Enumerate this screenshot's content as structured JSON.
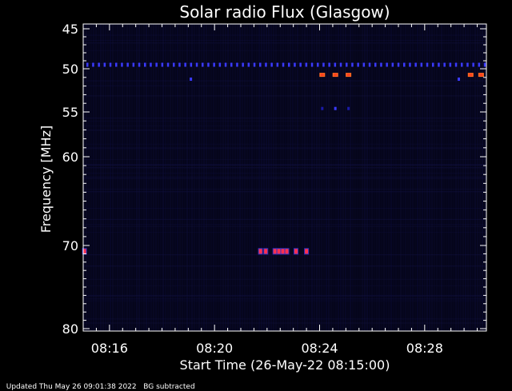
{
  "chart_data": {
    "type": "heatmap",
    "title": "Solar radio Flux (Glasgow)",
    "ylabel": "Frequency [MHz]",
    "xlabel": "Start Time (26-May-22 08:15:00)",
    "xlim_minutes": [
      15.0,
      30.35
    ],
    "ylim": [
      80,
      45
    ],
    "y_ticks": [
      45,
      50,
      55,
      60,
      70,
      80
    ],
    "x_ticks": [
      {
        "minute": 16,
        "label": "08:16"
      },
      {
        "minute": 20,
        "label": "08:20"
      },
      {
        "minute": 24,
        "label": "08:24"
      },
      {
        "minute": 28,
        "label": "08:28"
      }
    ],
    "colors": {
      "background": "#000000",
      "plot_bg": "#05051a",
      "axis": "#ffffff",
      "weak": "#1a1aa8",
      "band": "#3a3aff",
      "bright": "#ff3050",
      "hot": "#ff6a20"
    },
    "bursts": [
      {
        "minute": 15.05,
        "freq": 70.7,
        "level": "bright"
      },
      {
        "minute": 21.75,
        "freq": 70.7,
        "level": "bright"
      },
      {
        "minute": 21.95,
        "freq": 70.7,
        "level": "bright"
      },
      {
        "minute": 22.3,
        "freq": 70.7,
        "level": "bright"
      },
      {
        "minute": 22.45,
        "freq": 70.7,
        "level": "bright"
      },
      {
        "minute": 22.6,
        "freq": 70.7,
        "level": "bright"
      },
      {
        "minute": 22.75,
        "freq": 70.7,
        "level": "bright"
      },
      {
        "minute": 23.1,
        "freq": 70.7,
        "level": "bright"
      },
      {
        "minute": 23.5,
        "freq": 70.7,
        "level": "bright"
      },
      {
        "minute": 24.1,
        "freq": 50.7,
        "level": "hot"
      },
      {
        "minute": 24.6,
        "freq": 50.7,
        "level": "hot"
      },
      {
        "minute": 25.1,
        "freq": 50.7,
        "level": "hot"
      },
      {
        "minute": 29.75,
        "freq": 50.7,
        "level": "hot"
      },
      {
        "minute": 30.15,
        "freq": 50.7,
        "level": "hot"
      },
      {
        "minute": 19.1,
        "freq": 51.2,
        "level": "band"
      },
      {
        "minute": 24.1,
        "freq": 54.6,
        "level": "weak"
      },
      {
        "minute": 24.6,
        "freq": 54.6,
        "level": "band"
      },
      {
        "minute": 25.1,
        "freq": 54.6,
        "level": "weak"
      },
      {
        "minute": 29.3,
        "freq": 51.2,
        "level": "band"
      }
    ],
    "band_freq": 49.5
  },
  "footer": {
    "updated": "Updated Thu May 26 09:01:38 2022",
    "note": "BG subtracted"
  }
}
